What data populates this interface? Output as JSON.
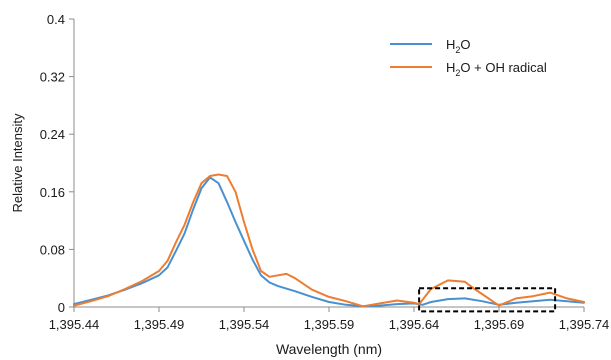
{
  "chart_data": {
    "type": "line",
    "title": "",
    "xlabel": "Wavelength (nm)",
    "ylabel": "Relative Intensity",
    "xlim": [
      1395.44,
      1395.74
    ],
    "ylim": [
      0,
      0.4
    ],
    "grid": false,
    "legend_position": "top-right",
    "x_ticks": [
      {
        "value": 1395.44,
        "label": "1,395.44"
      },
      {
        "value": 1395.49,
        "label": "1,395.49"
      },
      {
        "value": 1395.54,
        "label": "1,395.54"
      },
      {
        "value": 1395.59,
        "label": "1,395.59"
      },
      {
        "value": 1395.64,
        "label": "1,395.64"
      },
      {
        "value": 1395.69,
        "label": "1,395.69"
      },
      {
        "value": 1395.74,
        "label": "1,395.74"
      }
    ],
    "y_ticks": [
      {
        "value": 0,
        "label": "0"
      },
      {
        "value": 0.08,
        "label": "0.08"
      },
      {
        "value": 0.16,
        "label": "0.16"
      },
      {
        "value": 0.24,
        "label": "0.24"
      },
      {
        "value": 0.32,
        "label": "0.32"
      },
      {
        "value": 0.4,
        "label": "0.4"
      }
    ],
    "series": [
      {
        "name": "H2O",
        "legend_label": {
          "main": "H",
          "sub": "2",
          "rest": "O"
        },
        "color": "#4a90d0",
        "points": [
          [
            1395.44,
            0.004
          ],
          [
            1395.45,
            0.01
          ],
          [
            1395.46,
            0.016
          ],
          [
            1395.47,
            0.024
          ],
          [
            1395.48,
            0.033
          ],
          [
            1395.49,
            0.044
          ],
          [
            1395.495,
            0.055
          ],
          [
            1395.5,
            0.078
          ],
          [
            1395.505,
            0.102
          ],
          [
            1395.51,
            0.135
          ],
          [
            1395.515,
            0.165
          ],
          [
            1395.52,
            0.18
          ],
          [
            1395.525,
            0.172
          ],
          [
            1395.53,
            0.146
          ],
          [
            1395.535,
            0.118
          ],
          [
            1395.54,
            0.092
          ],
          [
            1395.545,
            0.066
          ],
          [
            1395.55,
            0.044
          ],
          [
            1395.555,
            0.034
          ],
          [
            1395.56,
            0.029
          ],
          [
            1395.57,
            0.022
          ],
          [
            1395.58,
            0.014
          ],
          [
            1395.59,
            0.007
          ],
          [
            1395.6,
            0.003
          ],
          [
            1395.61,
            0.001
          ],
          [
            1395.62,
            0.002
          ],
          [
            1395.63,
            0.004
          ],
          [
            1395.64,
            0.005
          ],
          [
            1395.645,
            0.003
          ],
          [
            1395.65,
            0.007
          ],
          [
            1395.66,
            0.011
          ],
          [
            1395.67,
            0.012
          ],
          [
            1395.68,
            0.008
          ],
          [
            1395.69,
            0.003
          ],
          [
            1395.7,
            0.006
          ],
          [
            1395.71,
            0.008
          ],
          [
            1395.72,
            0.01
          ],
          [
            1395.73,
            0.008
          ],
          [
            1395.74,
            0.006
          ]
        ]
      },
      {
        "name": "H2O + OH radical",
        "legend_label": {
          "main": "H",
          "sub": "2",
          "rest": "O + OH radical"
        },
        "color": "#ed7d31",
        "points": [
          [
            1395.44,
            0.002
          ],
          [
            1395.45,
            0.008
          ],
          [
            1395.46,
            0.015
          ],
          [
            1395.47,
            0.025
          ],
          [
            1395.48,
            0.036
          ],
          [
            1395.49,
            0.05
          ],
          [
            1395.495,
            0.064
          ],
          [
            1395.5,
            0.09
          ],
          [
            1395.505,
            0.114
          ],
          [
            1395.51,
            0.145
          ],
          [
            1395.515,
            0.172
          ],
          [
            1395.52,
            0.182
          ],
          [
            1395.525,
            0.184
          ],
          [
            1395.53,
            0.182
          ],
          [
            1395.535,
            0.16
          ],
          [
            1395.54,
            0.118
          ],
          [
            1395.545,
            0.08
          ],
          [
            1395.55,
            0.05
          ],
          [
            1395.555,
            0.042
          ],
          [
            1395.56,
            0.044
          ],
          [
            1395.565,
            0.046
          ],
          [
            1395.57,
            0.04
          ],
          [
            1395.58,
            0.024
          ],
          [
            1395.59,
            0.014
          ],
          [
            1395.6,
            0.008
          ],
          [
            1395.61,
            0.001
          ],
          [
            1395.62,
            0.005
          ],
          [
            1395.63,
            0.009
          ],
          [
            1395.64,
            0.006
          ],
          [
            1395.643,
            0.004
          ],
          [
            1395.65,
            0.025
          ],
          [
            1395.66,
            0.037
          ],
          [
            1395.67,
            0.035
          ],
          [
            1395.675,
            0.026
          ],
          [
            1395.68,
            0.018
          ],
          [
            1395.69,
            0.002
          ],
          [
            1395.7,
            0.012
          ],
          [
            1395.71,
            0.015
          ],
          [
            1395.72,
            0.02
          ],
          [
            1395.73,
            0.012
          ],
          [
            1395.74,
            0.007
          ]
        ]
      }
    ],
    "annotations": [
      {
        "type": "dashed-box",
        "x_range": [
          1395.643,
          1395.723
        ],
        "y_range": [
          -0.006,
          0.026
        ],
        "color": "#000000"
      }
    ]
  }
}
